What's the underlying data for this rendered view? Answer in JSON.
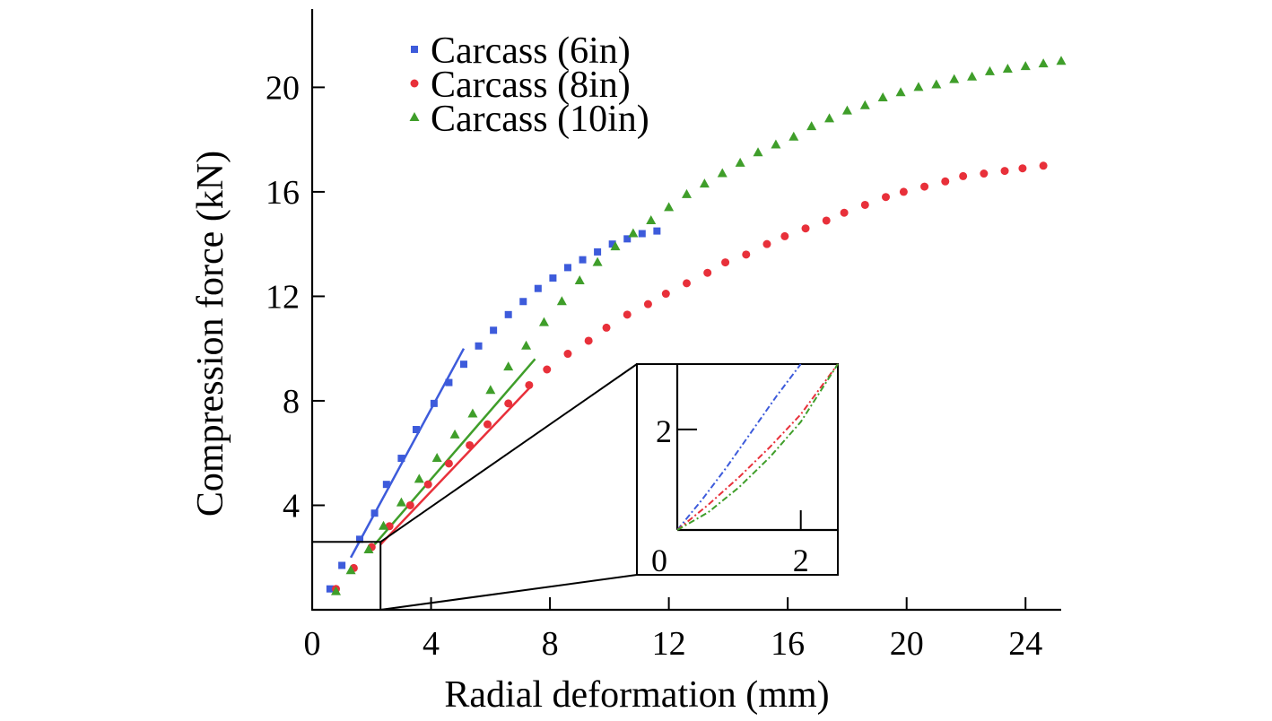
{
  "chart_data": {
    "type": "scatter",
    "xlabel": "Radial deformation (mm)",
    "ylabel": "Compression force (kN)",
    "xlim": [
      0,
      25.2
    ],
    "ylim": [
      0,
      23
    ],
    "xticks": [
      0,
      4,
      8,
      12,
      16,
      20,
      24
    ],
    "yticks": [
      4,
      8,
      12,
      16,
      20
    ],
    "legend_position": "top-left",
    "grid": false,
    "series": [
      {
        "name": "Carcass (6in)",
        "color": "#3d5bdb",
        "marker": "square",
        "x": [
          0.6,
          1.0,
          1.6,
          2.1,
          2.5,
          3.0,
          3.5,
          4.1,
          4.6,
          5.1,
          5.6,
          6.1,
          6.6,
          7.1,
          7.6,
          8.1,
          8.6,
          9.1,
          9.6,
          10.1,
          10.6,
          11.1,
          11.6
        ],
        "y": [
          0.8,
          1.7,
          2.7,
          3.7,
          4.8,
          5.8,
          6.9,
          7.9,
          8.7,
          9.4,
          10.1,
          10.7,
          11.3,
          11.8,
          12.3,
          12.7,
          13.1,
          13.4,
          13.7,
          14.0,
          14.2,
          14.4,
          14.5
        ]
      },
      {
        "name": "Carcass (8in)",
        "color": "#e8303a",
        "marker": "circle",
        "x": [
          0.8,
          1.4,
          2.0,
          2.6,
          3.3,
          3.9,
          4.6,
          5.3,
          5.9,
          6.6,
          7.3,
          7.9,
          8.6,
          9.3,
          9.9,
          10.6,
          11.3,
          11.9,
          12.6,
          13.3,
          13.9,
          14.6,
          15.3,
          15.9,
          16.6,
          17.3,
          17.9,
          18.6,
          19.3,
          19.9,
          20.6,
          21.3,
          21.9,
          22.6,
          23.3,
          23.9,
          24.6
        ],
        "y": [
          0.8,
          1.6,
          2.4,
          3.2,
          4.0,
          4.8,
          5.6,
          6.3,
          7.1,
          7.9,
          8.6,
          9.2,
          9.8,
          10.3,
          10.8,
          11.3,
          11.7,
          12.1,
          12.5,
          12.9,
          13.3,
          13.6,
          14.0,
          14.3,
          14.6,
          14.9,
          15.2,
          15.5,
          15.8,
          16.0,
          16.2,
          16.4,
          16.6,
          16.7,
          16.8,
          16.9,
          17.0
        ]
      },
      {
        "name": "Carcass (10in)",
        "color": "#3f9e2a",
        "marker": "triangle",
        "x": [
          0.8,
          1.3,
          1.9,
          2.4,
          3.0,
          3.6,
          4.2,
          4.8,
          5.4,
          6.0,
          6.6,
          7.2,
          7.8,
          8.4,
          9.0,
          9.6,
          10.2,
          10.8,
          11.4,
          12.0,
          12.6,
          13.2,
          13.8,
          14.4,
          15.0,
          15.6,
          16.2,
          16.8,
          17.4,
          18.0,
          18.6,
          19.2,
          19.8,
          20.4,
          21.0,
          21.6,
          22.2,
          22.8,
          23.4,
          24.0,
          24.6,
          25.2
        ],
        "y": [
          0.7,
          1.5,
          2.3,
          3.2,
          4.1,
          5.0,
          5.8,
          6.7,
          7.5,
          8.4,
          9.3,
          10.1,
          11.0,
          11.8,
          12.6,
          13.3,
          13.9,
          14.4,
          14.9,
          15.4,
          15.9,
          16.3,
          16.7,
          17.1,
          17.5,
          17.8,
          18.1,
          18.5,
          18.8,
          19.1,
          19.3,
          19.6,
          19.8,
          20.0,
          20.1,
          20.3,
          20.4,
          20.6,
          20.7,
          20.8,
          20.9,
          21.0
        ]
      }
    ],
    "fit_lines": [
      {
        "series": "Carcass (6in)",
        "color": "#3d5bdb",
        "x": [
          1.3,
          5.1
        ],
        "y": [
          2.0,
          10.0
        ]
      },
      {
        "series": "Carcass (8in)",
        "color": "#e8303a",
        "x": [
          2.3,
          7.4
        ],
        "y": [
          2.5,
          8.6
        ]
      },
      {
        "series": "Carcass (10in)",
        "color": "#3f9e2a",
        "x": [
          2.1,
          7.5
        ],
        "y": [
          2.5,
          9.6
        ]
      }
    ],
    "zoom_box": {
      "x": [
        0,
        2.3
      ],
      "y": [
        0,
        2.6
      ]
    },
    "inset": {
      "xlim": [
        0,
        2.6
      ],
      "ylim": [
        0,
        3.3
      ],
      "xticks": [
        0,
        2
      ],
      "yticks": [
        2
      ],
      "lines": [
        {
          "series": "Carcass (6in)",
          "color": "#3d5bdb",
          "x": [
            0,
            0.4,
            0.8,
            1.2,
            1.6,
            2.0
          ],
          "y": [
            0,
            0.6,
            1.25,
            1.95,
            2.65,
            3.3
          ]
        },
        {
          "series": "Carcass (8in)",
          "color": "#e8303a",
          "x": [
            0,
            0.5,
            1.0,
            1.5,
            2.0,
            2.6
          ],
          "y": [
            0,
            0.5,
            1.05,
            1.65,
            2.3,
            3.3
          ]
        },
        {
          "series": "Carcass (10in)",
          "color": "#3f9e2a",
          "x": [
            0,
            0.5,
            1.0,
            1.5,
            2.0,
            2.6
          ],
          "y": [
            0,
            0.35,
            0.85,
            1.45,
            2.15,
            3.3
          ]
        }
      ]
    }
  }
}
